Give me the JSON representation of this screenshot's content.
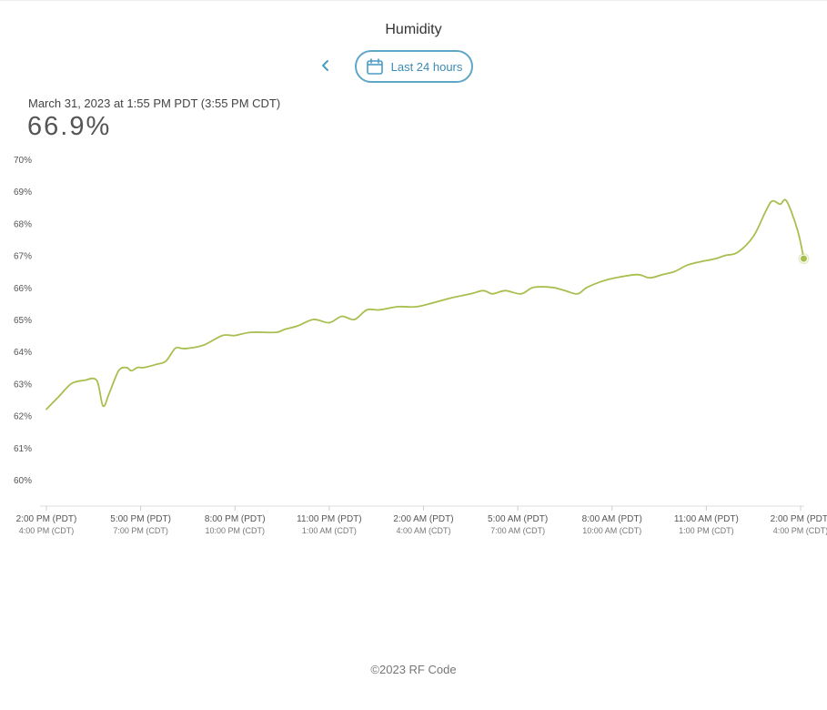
{
  "header": {
    "title": "Humidity",
    "back_icon": "chevron-left-icon",
    "range_label": "Last 24 hours",
    "range_icon": "calendar-icon"
  },
  "reading": {
    "timestamp": "March 31, 2023 at 1:55 PM PDT (3:55 PM CDT)",
    "value": "66.9%"
  },
  "colors": {
    "line": "#a8bf4f",
    "marker": "#a8bf4f",
    "accent": "#5fa7c8"
  },
  "chart_data": {
    "type": "line",
    "title": "",
    "xlabel": "",
    "ylabel": "",
    "ylim": [
      60,
      70
    ],
    "y_ticks": [
      "60%",
      "61%",
      "62%",
      "63%",
      "64%",
      "65%",
      "66%",
      "67%",
      "68%",
      "69%",
      "70%"
    ],
    "x_ticks": [
      {
        "primary": "2:00 PM (PDT)",
        "secondary": "4:00 PM (CDT)"
      },
      {
        "primary": "5:00 PM (PDT)",
        "secondary": "7:00 PM (CDT)"
      },
      {
        "primary": "8:00 PM (PDT)",
        "secondary": "10:00 PM (CDT)"
      },
      {
        "primary": "11:00 PM (PDT)",
        "secondary": "1:00 AM (CDT)"
      },
      {
        "primary": "2:00 AM (PDT)",
        "secondary": "4:00 AM (CDT)"
      },
      {
        "primary": "5:00 AM (PDT)",
        "secondary": "7:00 AM (CDT)"
      },
      {
        "primary": "8:00 AM (PDT)",
        "secondary": "10:00 AM (CDT)"
      },
      {
        "primary": "11:00 AM (PDT)",
        "secondary": "1:00 PM (CDT)"
      },
      {
        "primary": "2:00 PM (PDT)",
        "secondary": "4:00 PM (CDT)"
      }
    ],
    "x_hours_since_first_tick": [
      0,
      0.2,
      0.4,
      0.8,
      1.2,
      1.6,
      1.8,
      2.0,
      2.3,
      2.55,
      2.7,
      2.9,
      3.1,
      3.5,
      3.8,
      4.1,
      4.3,
      4.5,
      5.0,
      5.6,
      6.0,
      6.5,
      7.3,
      7.6,
      8.0,
      8.5,
      9.0,
      9.4,
      9.8,
      10.2,
      10.6,
      11.2,
      11.8,
      12.6,
      13.0,
      13.5,
      13.9,
      14.2,
      14.6,
      15.1,
      15.5,
      16.1,
      16.5,
      16.9,
      17.2,
      17.7,
      18.1,
      18.8,
      19.2,
      19.6,
      20.0,
      20.4,
      20.8,
      21.3,
      21.6,
      22.0,
      22.5,
      22.9,
      23.1,
      23.35,
      23.55,
      23.9,
      24.1
    ],
    "series": [
      {
        "values": [
          62.2,
          62.4,
          62.6,
          63.0,
          63.1,
          63.1,
          62.3,
          62.7,
          63.4,
          63.5,
          63.4,
          63.5,
          63.5,
          63.6,
          63.7,
          64.1,
          64.1,
          64.1,
          64.2,
          64.5,
          64.5,
          64.6,
          64.6,
          64.7,
          64.8,
          65.0,
          64.9,
          65.1,
          65.0,
          65.3,
          65.3,
          65.4,
          65.4,
          65.6,
          65.7,
          65.8,
          65.9,
          65.8,
          65.9,
          65.8,
          66.0,
          66.0,
          65.9,
          65.8,
          66.0,
          66.2,
          66.3,
          66.4,
          66.3,
          66.4,
          66.5,
          66.7,
          66.8,
          66.9,
          67.0,
          67.1,
          67.6,
          68.4,
          68.7,
          68.6,
          68.7,
          67.8,
          66.9
        ]
      }
    ],
    "grid": false,
    "legend": "none",
    "current_point_marker": true
  },
  "footer": {
    "copyright": "©2023 RF Code"
  }
}
